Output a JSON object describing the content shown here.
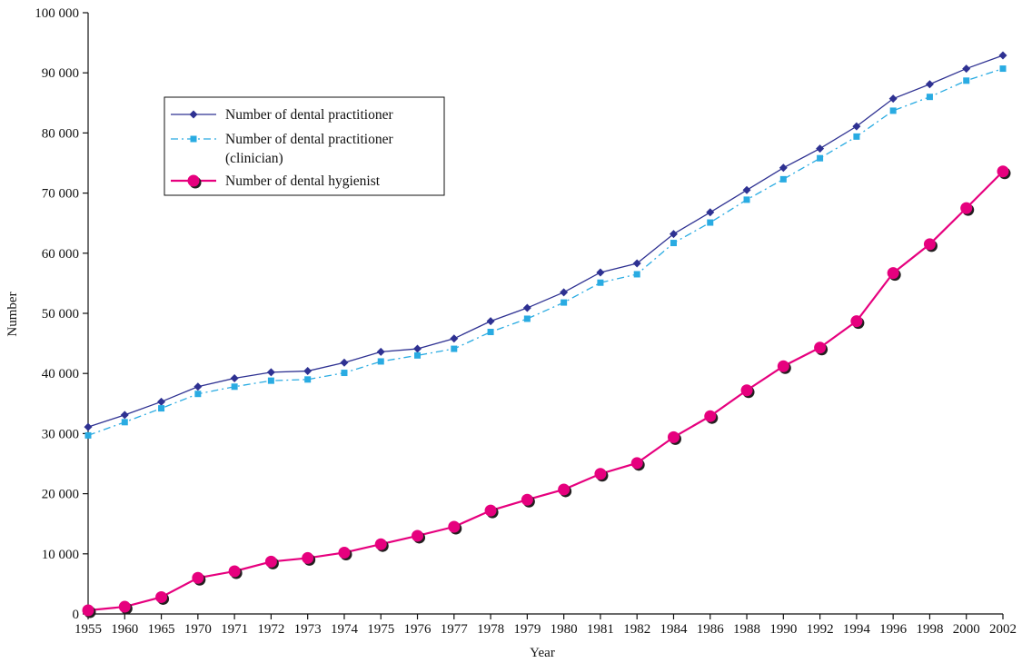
{
  "chart_data": {
    "type": "line",
    "title": "",
    "xlabel": "Year",
    "ylabel": "Number",
    "ylim": [
      0,
      100000
    ],
    "yticks": [
      0,
      10000,
      20000,
      30000,
      40000,
      50000,
      60000,
      70000,
      80000,
      90000,
      100000
    ],
    "ytick_labels": [
      "0",
      "10 000",
      "20 000",
      "30 000",
      "40 000",
      "50 000",
      "60 000",
      "70 000",
      "80 000",
      "90 000",
      "100 000"
    ],
    "categories": [
      "1955",
      "1960",
      "1965",
      "1970",
      "1971",
      "1972",
      "1973",
      "1974",
      "1975",
      "1976",
      "1977",
      "1978",
      "1979",
      "1980",
      "1981",
      "1982",
      "1984",
      "1986",
      "1988",
      "1990",
      "1992",
      "1994",
      "1996",
      "1998",
      "2000",
      "2002"
    ],
    "grid": false,
    "legend_position": "top-left",
    "series": [
      {
        "name": "Number of dental practitioner",
        "color": "#2e3192",
        "marker": "diamond",
        "line_style": "solid",
        "values": [
          31100,
          33100,
          35300,
          37800,
          39200,
          40200,
          40400,
          41800,
          43600,
          44100,
          45800,
          48700,
          50900,
          53500,
          56800,
          58300,
          63200,
          66800,
          70500,
          74200,
          77400,
          81100,
          85700,
          88100,
          90700,
          92900
        ]
      },
      {
        "name": "Number of dental practitioner (clinician)",
        "name_lines": [
          "Number of dental practitioner",
          "(clinician)"
        ],
        "color": "#29abe2",
        "marker": "square",
        "line_style": "dash-dot",
        "values": [
          29700,
          31900,
          34200,
          36600,
          37800,
          38800,
          39000,
          40100,
          42000,
          43000,
          44100,
          46900,
          49100,
          51800,
          55100,
          56500,
          61700,
          65100,
          68900,
          72300,
          75800,
          79400,
          83700,
          86000,
          88700,
          90700
        ]
      },
      {
        "name": "Number of dental hygienist",
        "color": "#e6007e",
        "marker": "circle",
        "line_style": "solid",
        "values": [
          600,
          1200,
          2800,
          6000,
          7100,
          8700,
          9300,
          10200,
          11600,
          13000,
          14500,
          17200,
          19000,
          20700,
          23300,
          25100,
          29400,
          32900,
          37200,
          41200,
          44300,
          48700,
          56700,
          61500,
          67500,
          73600
        ]
      }
    ]
  }
}
